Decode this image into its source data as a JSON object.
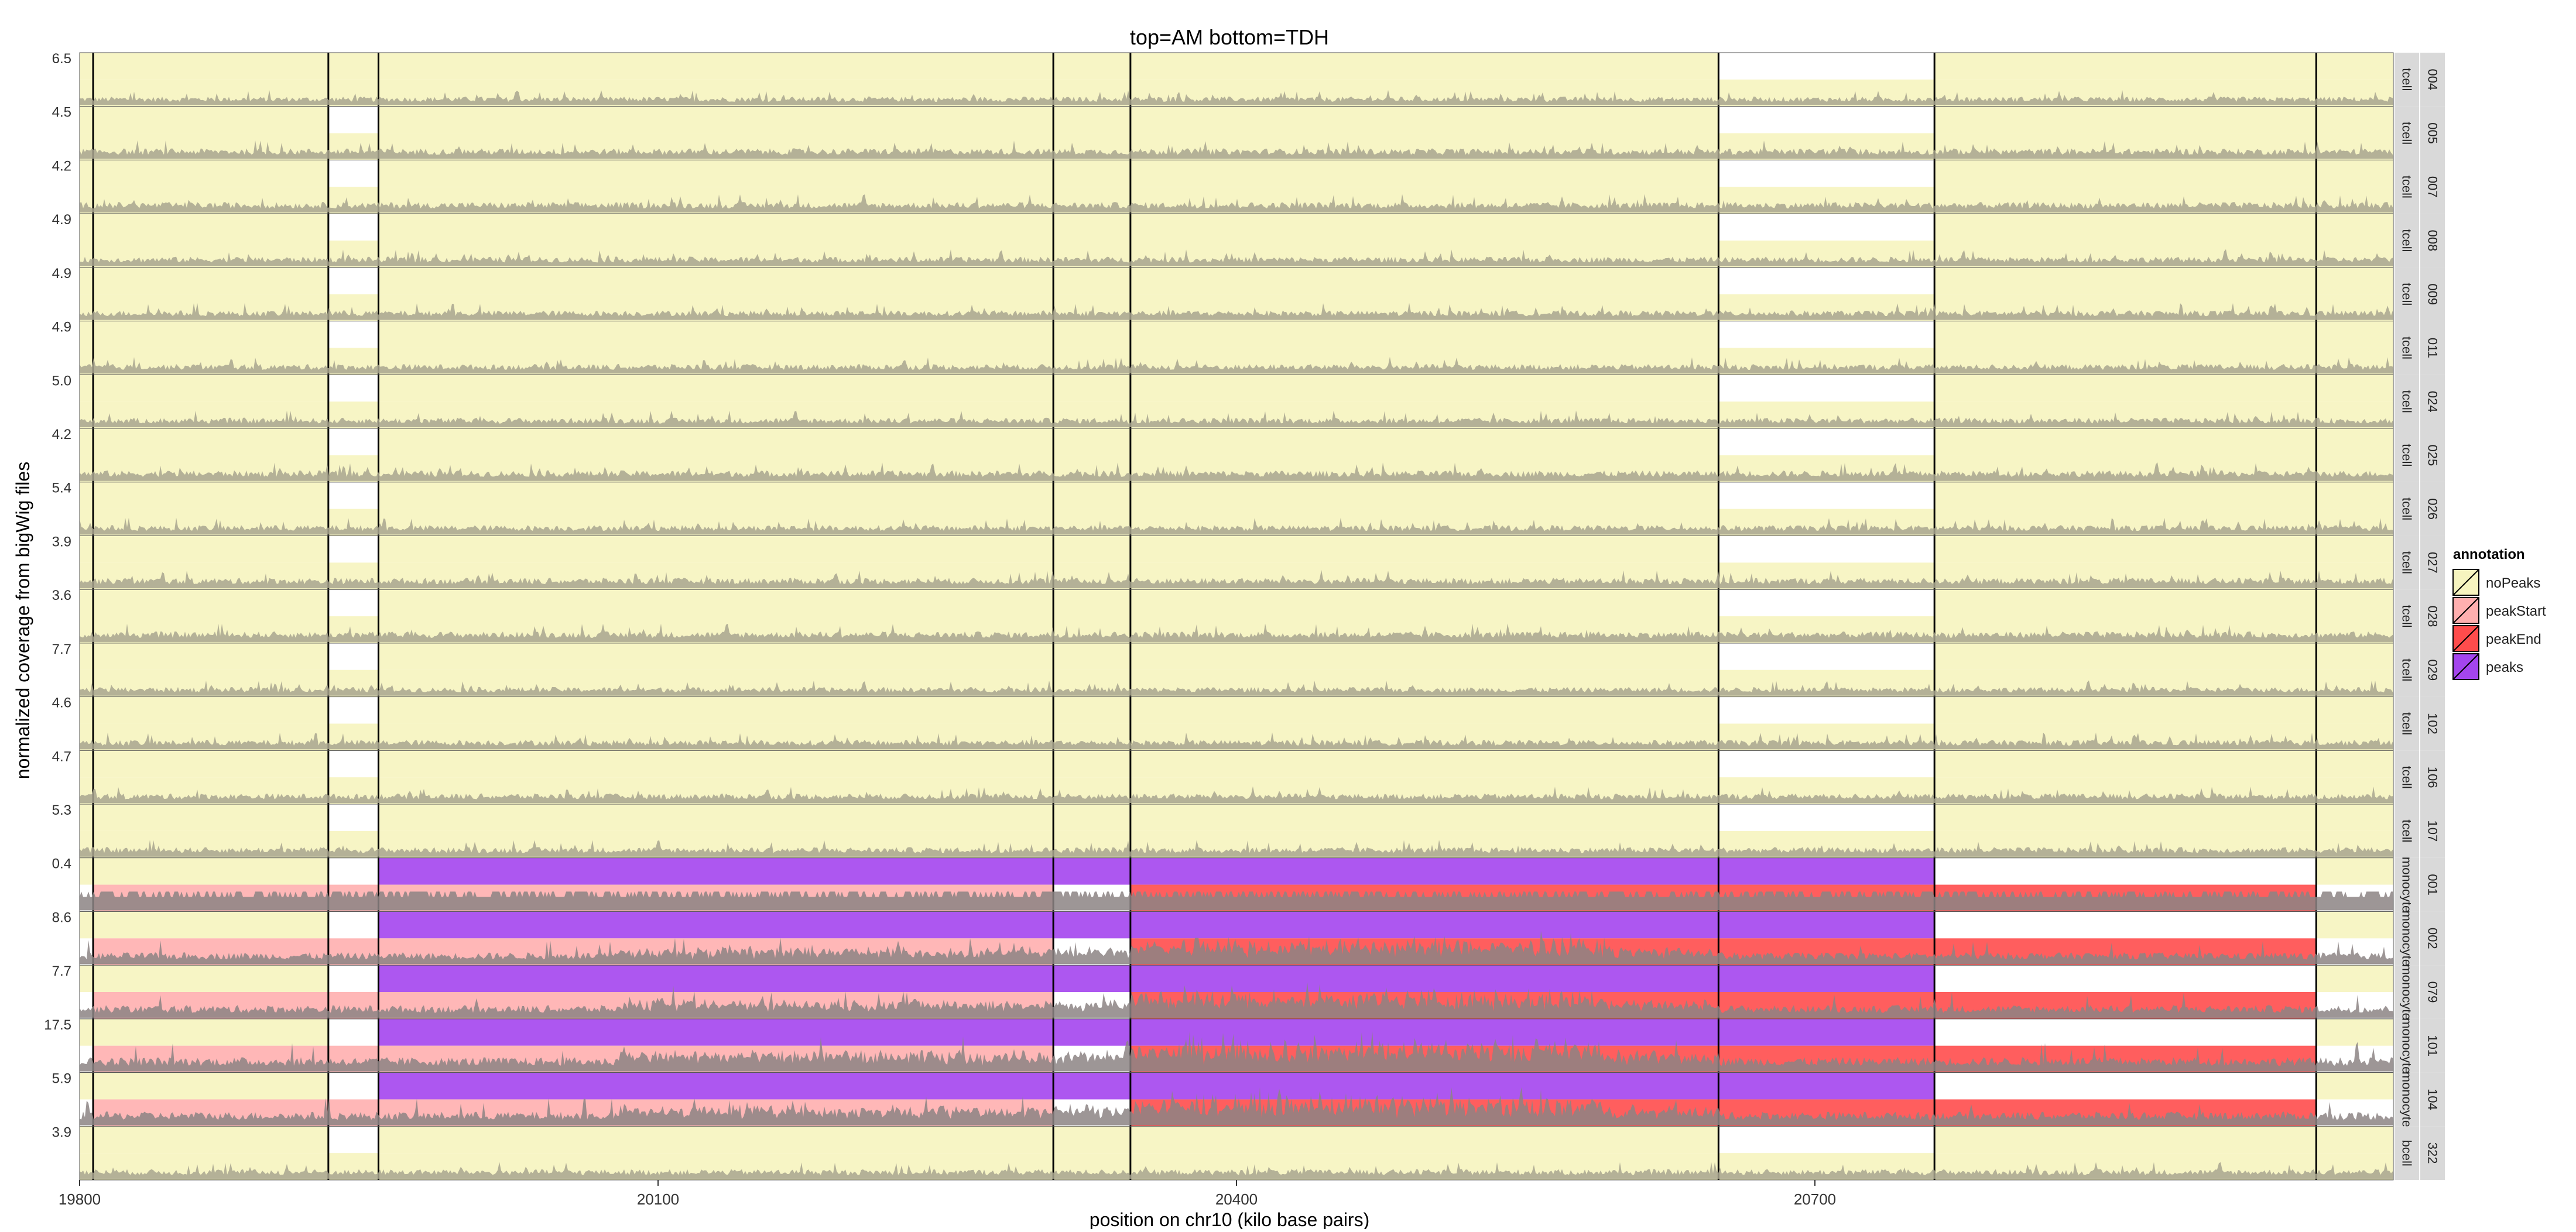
{
  "chart_data": {
    "type": "area",
    "title": "top=AM bottom=TDH",
    "xlabel": "position on chr10 (kilo base pairs)",
    "ylabel": "normalized coverage from bigWig files",
    "xlim": [
      19800,
      21000
    ],
    "x_ticks": [
      19800,
      20100,
      20400,
      20700
    ],
    "legend": {
      "title": "annotation",
      "placement": "right",
      "entries": [
        {
          "label": "noPeaks",
          "color": "#f6f4bf"
        },
        {
          "label": "peakStart",
          "color": "#ffafaf"
        },
        {
          "label": "peakEnd",
          "color": "#ff4c4c"
        },
        {
          "label": "peaks",
          "color": "#a445ee"
        }
      ]
    },
    "region_bounds_kb": [
      19807,
      19929,
      19955,
      20305,
      20345,
      20650,
      20762,
      20960
    ],
    "panel_label_colors": {
      "strip": "#d9d9d9"
    },
    "panels": [
      {
        "sample": "004",
        "cell_type": "tcell",
        "ymax": "6.5",
        "trace_scale": 0.45,
        "top": [
          "noPeaks",
          "noPeaks",
          "noPeaks",
          "noPeaks",
          "noPeaks",
          "noPeaks",
          "none",
          "noPeaks",
          "noPeaks"
        ],
        "bottom": [
          "noPeaks",
          "noPeaks",
          "noPeaks",
          "noPeaks",
          "noPeaks",
          "noPeaks",
          "noPeaks",
          "noPeaks",
          "noPeaks"
        ]
      },
      {
        "sample": "005",
        "cell_type": "tcell",
        "ymax": "4.5",
        "trace_scale": 0.55,
        "top": [
          "noPeaks",
          "noPeaks",
          "none",
          "noPeaks",
          "noPeaks",
          "noPeaks",
          "none",
          "noPeaks",
          "noPeaks"
        ],
        "bottom": [
          "noPeaks",
          "noPeaks",
          "noPeaks",
          "noPeaks",
          "noPeaks",
          "noPeaks",
          "noPeaks",
          "noPeaks",
          "noPeaks"
        ]
      },
      {
        "sample": "007",
        "cell_type": "tcell",
        "ymax": "4.2",
        "trace_scale": 0.55,
        "top": [
          "noPeaks",
          "noPeaks",
          "none",
          "noPeaks",
          "noPeaks",
          "noPeaks",
          "none",
          "noPeaks",
          "noPeaks"
        ],
        "bottom": [
          "noPeaks",
          "noPeaks",
          "noPeaks",
          "noPeaks",
          "noPeaks",
          "noPeaks",
          "noPeaks",
          "noPeaks",
          "noPeaks"
        ]
      },
      {
        "sample": "008",
        "cell_type": "tcell",
        "ymax": "4.9",
        "trace_scale": 0.5,
        "top": [
          "noPeaks",
          "noPeaks",
          "none",
          "noPeaks",
          "noPeaks",
          "noPeaks",
          "none",
          "noPeaks",
          "noPeaks"
        ],
        "bottom": [
          "noPeaks",
          "noPeaks",
          "noPeaks",
          "noPeaks",
          "noPeaks",
          "noPeaks",
          "noPeaks",
          "noPeaks",
          "noPeaks"
        ]
      },
      {
        "sample": "009",
        "cell_type": "tcell",
        "ymax": "4.9",
        "trace_scale": 0.5,
        "top": [
          "noPeaks",
          "noPeaks",
          "none",
          "noPeaks",
          "noPeaks",
          "noPeaks",
          "none",
          "noPeaks",
          "noPeaks"
        ],
        "bottom": [
          "noPeaks",
          "noPeaks",
          "noPeaks",
          "noPeaks",
          "noPeaks",
          "noPeaks",
          "noPeaks",
          "noPeaks",
          "noPeaks"
        ]
      },
      {
        "sample": "011",
        "cell_type": "tcell",
        "ymax": "4.9",
        "trace_scale": 0.5,
        "top": [
          "noPeaks",
          "noPeaks",
          "none",
          "noPeaks",
          "noPeaks",
          "noPeaks",
          "none",
          "noPeaks",
          "noPeaks"
        ],
        "bottom": [
          "noPeaks",
          "noPeaks",
          "noPeaks",
          "noPeaks",
          "noPeaks",
          "noPeaks",
          "noPeaks",
          "noPeaks",
          "noPeaks"
        ]
      },
      {
        "sample": "024",
        "cell_type": "tcell",
        "ymax": "5.0",
        "trace_scale": 0.5,
        "top": [
          "noPeaks",
          "noPeaks",
          "none",
          "noPeaks",
          "noPeaks",
          "noPeaks",
          "none",
          "noPeaks",
          "noPeaks"
        ],
        "bottom": [
          "noPeaks",
          "noPeaks",
          "noPeaks",
          "noPeaks",
          "noPeaks",
          "noPeaks",
          "noPeaks",
          "noPeaks",
          "noPeaks"
        ]
      },
      {
        "sample": "025",
        "cell_type": "tcell",
        "ymax": "4.2",
        "trace_scale": 0.55,
        "top": [
          "noPeaks",
          "noPeaks",
          "none",
          "noPeaks",
          "noPeaks",
          "noPeaks",
          "none",
          "noPeaks",
          "noPeaks"
        ],
        "bottom": [
          "noPeaks",
          "noPeaks",
          "noPeaks",
          "noPeaks",
          "noPeaks",
          "noPeaks",
          "noPeaks",
          "noPeaks",
          "noPeaks"
        ]
      },
      {
        "sample": "026",
        "cell_type": "tcell",
        "ymax": "5.4",
        "trace_scale": 0.5,
        "top": [
          "noPeaks",
          "noPeaks",
          "none",
          "noPeaks",
          "noPeaks",
          "noPeaks",
          "none",
          "noPeaks",
          "noPeaks"
        ],
        "bottom": [
          "noPeaks",
          "noPeaks",
          "noPeaks",
          "noPeaks",
          "noPeaks",
          "noPeaks",
          "noPeaks",
          "noPeaks",
          "noPeaks"
        ]
      },
      {
        "sample": "027",
        "cell_type": "tcell",
        "ymax": "3.9",
        "trace_scale": 0.55,
        "top": [
          "noPeaks",
          "noPeaks",
          "none",
          "noPeaks",
          "noPeaks",
          "noPeaks",
          "none",
          "noPeaks",
          "noPeaks"
        ],
        "bottom": [
          "noPeaks",
          "noPeaks",
          "noPeaks",
          "noPeaks",
          "noPeaks",
          "noPeaks",
          "noPeaks",
          "noPeaks",
          "noPeaks"
        ]
      },
      {
        "sample": "028",
        "cell_type": "tcell",
        "ymax": "3.6",
        "trace_scale": 0.55,
        "top": [
          "noPeaks",
          "noPeaks",
          "none",
          "noPeaks",
          "noPeaks",
          "noPeaks",
          "none",
          "noPeaks",
          "noPeaks"
        ],
        "bottom": [
          "noPeaks",
          "noPeaks",
          "noPeaks",
          "noPeaks",
          "noPeaks",
          "noPeaks",
          "noPeaks",
          "noPeaks",
          "noPeaks"
        ]
      },
      {
        "sample": "029",
        "cell_type": "tcell",
        "ymax": "7.7",
        "trace_scale": 0.45,
        "top": [
          "noPeaks",
          "noPeaks",
          "none",
          "noPeaks",
          "noPeaks",
          "noPeaks",
          "none",
          "noPeaks",
          "noPeaks"
        ],
        "bottom": [
          "noPeaks",
          "noPeaks",
          "noPeaks",
          "noPeaks",
          "noPeaks",
          "noPeaks",
          "noPeaks",
          "noPeaks",
          "noPeaks"
        ]
      },
      {
        "sample": "102",
        "cell_type": "tcell",
        "ymax": "4.6",
        "trace_scale": 0.5,
        "top": [
          "noPeaks",
          "noPeaks",
          "none",
          "noPeaks",
          "noPeaks",
          "noPeaks",
          "none",
          "noPeaks",
          "noPeaks"
        ],
        "bottom": [
          "noPeaks",
          "noPeaks",
          "noPeaks",
          "noPeaks",
          "noPeaks",
          "noPeaks",
          "noPeaks",
          "noPeaks",
          "noPeaks"
        ]
      },
      {
        "sample": "106",
        "cell_type": "tcell",
        "ymax": "4.7",
        "trace_scale": 0.5,
        "top": [
          "noPeaks",
          "noPeaks",
          "none",
          "noPeaks",
          "noPeaks",
          "noPeaks",
          "none",
          "noPeaks",
          "noPeaks"
        ],
        "bottom": [
          "noPeaks",
          "noPeaks",
          "noPeaks",
          "noPeaks",
          "noPeaks",
          "noPeaks",
          "noPeaks",
          "noPeaks",
          "noPeaks"
        ]
      },
      {
        "sample": "107",
        "cell_type": "tcell",
        "ymax": "5.3",
        "trace_scale": 0.5,
        "top": [
          "noPeaks",
          "noPeaks",
          "none",
          "noPeaks",
          "noPeaks",
          "noPeaks",
          "none",
          "noPeaks",
          "noPeaks"
        ],
        "bottom": [
          "noPeaks",
          "noPeaks",
          "noPeaks",
          "noPeaks",
          "noPeaks",
          "noPeaks",
          "noPeaks",
          "noPeaks",
          "noPeaks"
        ]
      },
      {
        "sample": "001",
        "cell_type": "monocyte",
        "ymax": "0.4",
        "trace_scale": 1.0,
        "trace_style": "bars",
        "top": [
          "noPeaks",
          "noPeaks",
          "none",
          "peaks",
          "peaks",
          "peaks",
          "peaks",
          "none",
          "noPeaks"
        ],
        "bottom": [
          "none",
          "peakStart",
          "peakStart",
          "peakStart",
          "none",
          "peakEnd",
          "peakEnd",
          "peakEnd",
          "none"
        ]
      },
      {
        "sample": "002",
        "cell_type": "monocyte",
        "ymax": "8.6",
        "trace_scale": 0.7,
        "trace_style": "peaky",
        "top": [
          "noPeaks",
          "noPeaks",
          "none",
          "peaks",
          "peaks",
          "peaks",
          "peaks",
          "none",
          "noPeaks"
        ],
        "bottom": [
          "none",
          "peakStart",
          "peakStart",
          "peakStart",
          "none",
          "peakEnd",
          "peakEnd",
          "peakEnd",
          "none"
        ]
      },
      {
        "sample": "079",
        "cell_type": "monocyte",
        "ymax": "7.7",
        "trace_scale": 0.75,
        "trace_style": "peaky",
        "top": [
          "noPeaks",
          "noPeaks",
          "none",
          "peaks",
          "peaks",
          "peaks",
          "peaks",
          "none",
          "noPeaks"
        ],
        "bottom": [
          "none",
          "peakStart",
          "peakStart",
          "peakStart",
          "none",
          "peakEnd",
          "peakEnd",
          "peakEnd",
          "none"
        ]
      },
      {
        "sample": "101",
        "cell_type": "monocyte",
        "ymax": "17.5",
        "trace_scale": 0.85,
        "trace_style": "peaky",
        "top": [
          "noPeaks",
          "noPeaks",
          "none",
          "peaks",
          "peaks",
          "peaks",
          "peaks",
          "none",
          "noPeaks"
        ],
        "bottom": [
          "none",
          "peakStart",
          "peakStart",
          "peakStart",
          "none",
          "peakEnd",
          "peakEnd",
          "peakEnd",
          "none"
        ]
      },
      {
        "sample": "104",
        "cell_type": "monocyte",
        "ymax": "5.9",
        "trace_scale": 0.8,
        "trace_style": "peaky",
        "top": [
          "noPeaks",
          "noPeaks",
          "none",
          "peaks",
          "peaks",
          "peaks",
          "peaks",
          "none",
          "noPeaks"
        ],
        "bottom": [
          "none",
          "peakStart",
          "peakStart",
          "peakStart",
          "none",
          "peakEnd",
          "peakEnd",
          "peakEnd",
          "none"
        ]
      },
      {
        "sample": "322",
        "cell_type": "bcell",
        "ymax": "3.9",
        "trace_scale": 0.5,
        "top": [
          "noPeaks",
          "noPeaks",
          "none",
          "noPeaks",
          "noPeaks",
          "noPeaks",
          "none",
          "noPeaks",
          "noPeaks"
        ],
        "bottom": [
          "noPeaks",
          "noPeaks",
          "noPeaks",
          "noPeaks",
          "noPeaks",
          "noPeaks",
          "noPeaks",
          "noPeaks",
          "noPeaks"
        ]
      }
    ]
  }
}
